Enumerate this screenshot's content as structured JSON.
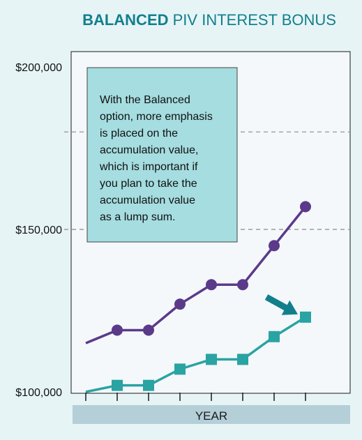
{
  "chart_data": {
    "type": "line",
    "title_bold": "BALANCED",
    "title_rest": " PIV INTEREST BONUS",
    "xlabel": "YEAR",
    "ylabel": "",
    "y_ticks": [
      {
        "value": 100000,
        "label": "$100,000"
      },
      {
        "value": 150000,
        "label": "$150,000"
      },
      {
        "value": 200000,
        "label": "$200,000"
      }
    ],
    "ylim": [
      100000,
      200000
    ],
    "x_count": 8,
    "gridlines": [
      150000,
      180000
    ],
    "series": [
      {
        "color": "#5b3a8a",
        "marker": "circle",
        "marker_start": 1,
        "values": [
          115000,
          119000,
          119000,
          127000,
          133000,
          133000,
          145000,
          157000
        ]
      },
      {
        "color": "#2aa3a3",
        "marker": "square",
        "marker_start": 1,
        "values": [
          100000,
          102000,
          102000,
          107000,
          110000,
          110000,
          117000,
          123000
        ]
      }
    ],
    "arrow_color": "#137f8c",
    "note": "With the Balanced option, more emphasis is placed on the accumulation value, which is important if you plan to take the accumulation value as a lump sum.",
    "note_lines": [
      "With the Balanced",
      "option, more emphasis",
      "is placed on the",
      "accumulation value,",
      "which is important if",
      "you plan to take the",
      "accumulation value",
      "as a lump sum."
    ],
    "colors": {
      "title": "#137f8c",
      "note_bg": "#a5dde0",
      "axis_band": "#b5cfd9",
      "plot_bg": "#f4f8fa"
    }
  }
}
